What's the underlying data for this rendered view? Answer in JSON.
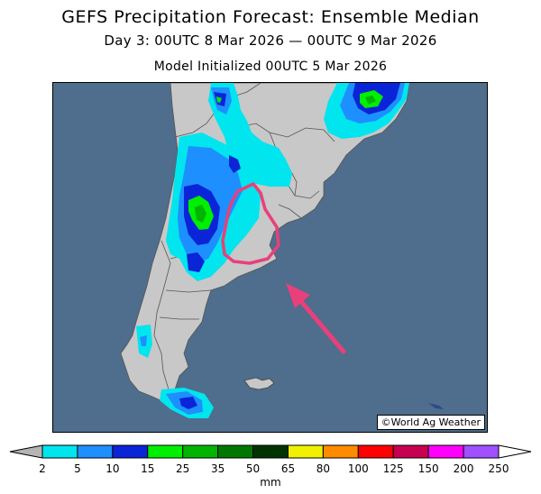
{
  "title": "GEFS Precipitation Forecast: Ensemble Median",
  "subtitle": "Day 3: 00UTC 8 Mar 2026 — 00UTC 9 Mar 2026",
  "init_line": "Model Initialized 00UTC 5 Mar 2026",
  "credit": "©World Ag Weather",
  "legend": {
    "unit": "mm",
    "ticks": [
      "2",
      "5",
      "10",
      "15",
      "25",
      "35",
      "50",
      "65",
      "80",
      "100",
      "125",
      "150",
      "200",
      "250"
    ],
    "colors": [
      "#00e5ee",
      "#1e8fff",
      "#0a24d8",
      "#00ef00",
      "#00b400",
      "#007800",
      "#003300",
      "#f0f000",
      "#ff8c00",
      "#ff0000",
      "#c80050",
      "#ff00ff",
      "#a050ff"
    ],
    "under_color": "#b4b4b4",
    "over_color": "#ffffff"
  },
  "map": {
    "ocean_color": "#4f6d8c",
    "land_color": "#c8c8c8",
    "highlight_color": "#e8407a"
  }
}
